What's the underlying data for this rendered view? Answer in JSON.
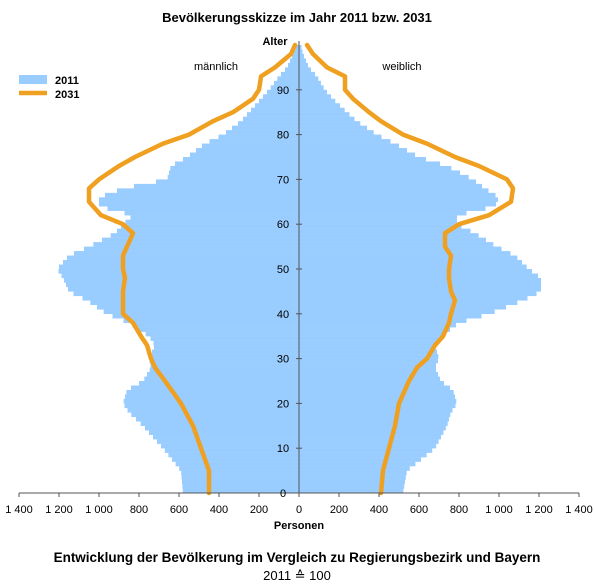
{
  "chart_data": {
    "type": "population-pyramid",
    "title": "Bevölkerungsskizze im Jahr 2011 bzw. 2031",
    "xlabel": "Personen",
    "ylabel": "Alter",
    "left_label": "männlich",
    "right_label": "weiblich",
    "x_ticks": [
      "1 400",
      "1 200",
      "1 000",
      "800",
      "600",
      "400",
      "200",
      "0",
      "200",
      "400",
      "600",
      "800",
      "1 000",
      "1 200",
      "1 400"
    ],
    "y_ticks": [
      0,
      10,
      20,
      30,
      40,
      50,
      60,
      70,
      80,
      90
    ],
    "xlim": [
      0,
      1400
    ],
    "ylim": [
      0,
      100
    ],
    "legend": {
      "placement": "top-left",
      "entries": [
        "2011",
        "2031"
      ]
    },
    "colors": {
      "2011": "#99ccff",
      "2031": "#f0a020"
    },
    "series_2011": {
      "name": "2011",
      "ages": [
        0,
        5,
        10,
        15,
        18,
        20,
        23,
        25,
        28,
        30,
        33,
        35,
        38,
        40,
        43,
        45,
        48,
        50,
        53,
        55,
        58,
        60,
        62,
        64,
        66,
        68,
        70,
        73,
        75,
        78,
        80,
        83,
        85,
        88,
        90,
        93,
        95,
        98,
        100
      ],
      "male": [
        580,
        590,
        680,
        780,
        850,
        880,
        860,
        780,
        740,
        750,
        720,
        750,
        850,
        960,
        1060,
        1150,
        1180,
        1210,
        1150,
        1050,
        920,
        880,
        830,
        1000,
        1000,
        880,
        660,
        640,
        560,
        470,
        380,
        290,
        250,
        190,
        150,
        100,
        60,
        30,
        10
      ],
      "female": [
        520,
        540,
        680,
        740,
        760,
        790,
        770,
        710,
        680,
        700,
        680,
        710,
        800,
        950,
        1120,
        1210,
        1210,
        1150,
        1080,
        990,
        880,
        790,
        790,
        980,
        1000,
        930,
        870,
        740,
        600,
        480,
        390,
        290,
        240,
        170,
        130,
        90,
        50,
        20,
        10
      ]
    },
    "series_2031": {
      "name": "2031",
      "ages": [
        0,
        5,
        10,
        15,
        20,
        25,
        28,
        30,
        33,
        35,
        38,
        40,
        43,
        45,
        48,
        50,
        53,
        55,
        58,
        60,
        62,
        65,
        68,
        70,
        73,
        75,
        78,
        80,
        83,
        85,
        88,
        90,
        93,
        95,
        98,
        100
      ],
      "male": [
        450,
        450,
        490,
        530,
        590,
        670,
        720,
        740,
        760,
        790,
        830,
        880,
        880,
        880,
        870,
        880,
        880,
        860,
        830,
        880,
        990,
        1050,
        1050,
        1000,
        900,
        820,
        680,
        550,
        430,
        330,
        230,
        200,
        190,
        120,
        40,
        20
      ],
      "female": [
        410,
        420,
        450,
        480,
        500,
        550,
        590,
        640,
        680,
        720,
        750,
        760,
        780,
        760,
        750,
        750,
        760,
        730,
        730,
        800,
        950,
        1060,
        1070,
        1040,
        900,
        780,
        640,
        520,
        410,
        350,
        270,
        230,
        230,
        140,
        70,
        40
      ]
    }
  },
  "footer": {
    "title": "Entwicklung der Bevölkerung im Vergleich zu Regierungsbezirk und Bayern",
    "subtitle": "2011 ≙ 100"
  }
}
